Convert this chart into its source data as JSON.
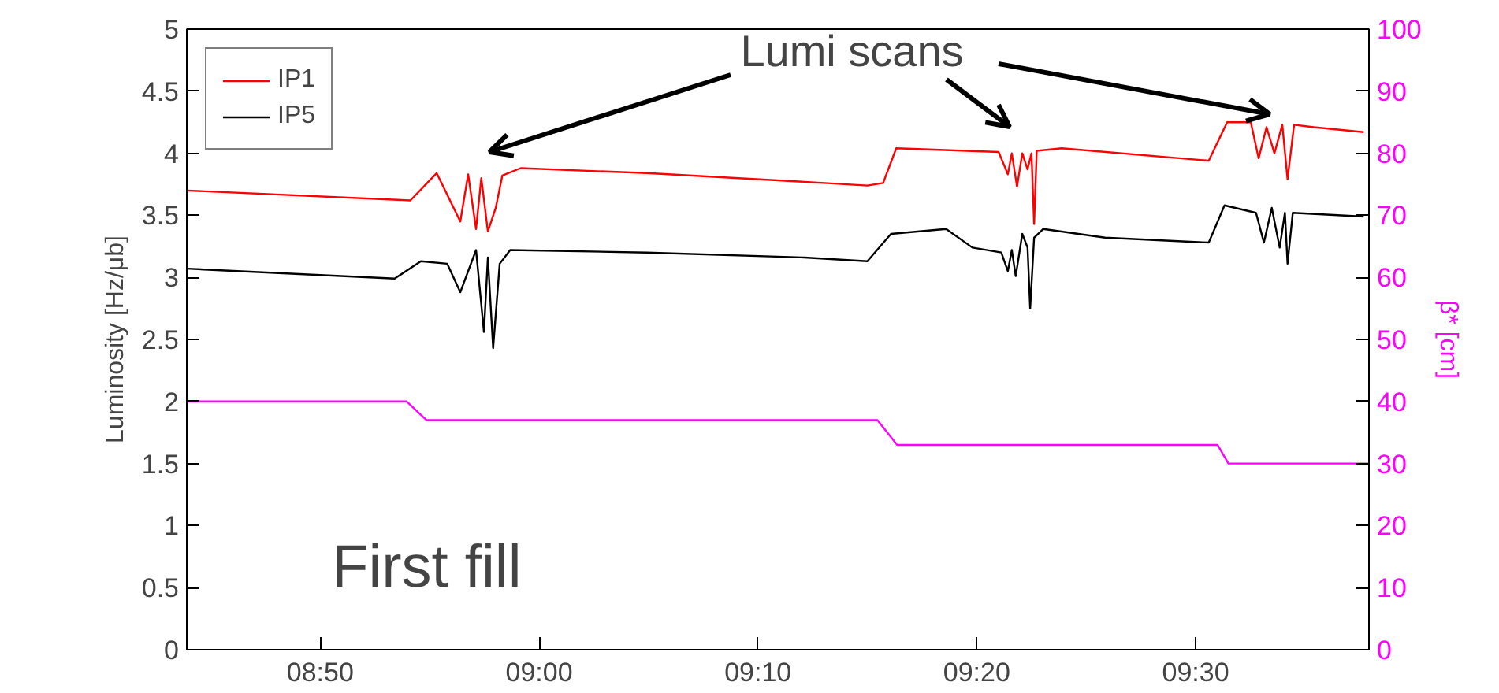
{
  "chart_data": {
    "type": "line",
    "ylabel": "Luminosity [Hz/μb]",
    "y2label": "β* [cm]",
    "annotations": [
      "Lumi scans",
      "First fill"
    ],
    "xlim": [
      8.7317,
      9.632
    ],
    "ylim": [
      0,
      5
    ],
    "y2lim": [
      0,
      100
    ],
    "xticks": [
      {
        "value": 8.8333,
        "label": "08:50"
      },
      {
        "value": 9.0,
        "label": "09:00"
      },
      {
        "value": 9.1667,
        "label": "09:10"
      },
      {
        "value": 9.3333,
        "label": "09:20"
      },
      {
        "value": 9.5,
        "label": "09:30"
      }
    ],
    "yticks": [
      0,
      0.5,
      1,
      1.5,
      2,
      2.5,
      3,
      3.5,
      4,
      4.5,
      5
    ],
    "y2ticks": [
      0,
      10,
      20,
      30,
      40,
      50,
      60,
      70,
      80,
      90,
      100
    ],
    "legend": "top left",
    "grid": false,
    "series": [
      {
        "name": "IP1",
        "color": "#ff0000",
        "x": [
          8.732,
          8.902,
          8.922,
          8.94,
          8.946,
          8.952,
          8.956,
          8.961,
          8.967,
          8.972,
          8.986,
          9.082,
          9.202,
          9.25,
          9.262,
          9.272,
          9.35,
          9.357,
          9.36,
          9.364,
          9.368,
          9.372,
          9.375,
          9.377,
          9.379,
          9.398,
          9.51,
          9.524,
          9.542,
          9.548,
          9.554,
          9.56,
          9.566,
          9.57,
          9.575,
          9.59,
          9.628
        ],
        "values": [
          3.7,
          3.62,
          3.84,
          3.45,
          3.83,
          3.39,
          3.8,
          3.37,
          3.56,
          3.82,
          3.88,
          3.84,
          3.77,
          3.74,
          3.76,
          4.04,
          4.01,
          3.83,
          4.0,
          3.73,
          4.0,
          3.87,
          4.0,
          3.43,
          4.02,
          4.04,
          3.94,
          4.25,
          4.25,
          3.96,
          4.21,
          4.0,
          4.23,
          3.79,
          4.23,
          4.21,
          4.17
        ]
      },
      {
        "name": "IP5",
        "color": "#000000",
        "x": [
          8.732,
          8.89,
          8.91,
          8.93,
          8.94,
          8.952,
          8.958,
          8.961,
          8.965,
          8.97,
          8.978,
          9.082,
          9.202,
          9.25,
          9.268,
          9.31,
          9.33,
          9.352,
          9.357,
          9.36,
          9.363,
          9.368,
          9.372,
          9.374,
          9.377,
          9.384,
          9.431,
          9.51,
          9.522,
          9.546,
          9.552,
          9.558,
          9.564,
          9.568,
          9.57,
          9.574,
          9.628
        ],
        "values": [
          3.07,
          2.99,
          3.13,
          3.11,
          2.88,
          3.22,
          2.56,
          3.16,
          2.43,
          3.11,
          3.22,
          3.2,
          3.16,
          3.13,
          3.35,
          3.39,
          3.24,
          3.2,
          3.05,
          3.22,
          3.01,
          3.35,
          3.24,
          2.75,
          3.32,
          3.39,
          3.32,
          3.28,
          3.58,
          3.52,
          3.28,
          3.56,
          3.24,
          3.52,
          3.11,
          3.52,
          3.49
        ]
      },
      {
        "color": "#ff00ff",
        "axis": "y2",
        "x": [
          8.732,
          8.8992,
          8.9142,
          9.2577,
          9.2727,
          9.5167,
          9.525,
          9.632
        ],
        "values": [
          40,
          40,
          37,
          37,
          33,
          33,
          30,
          30
        ]
      }
    ]
  }
}
